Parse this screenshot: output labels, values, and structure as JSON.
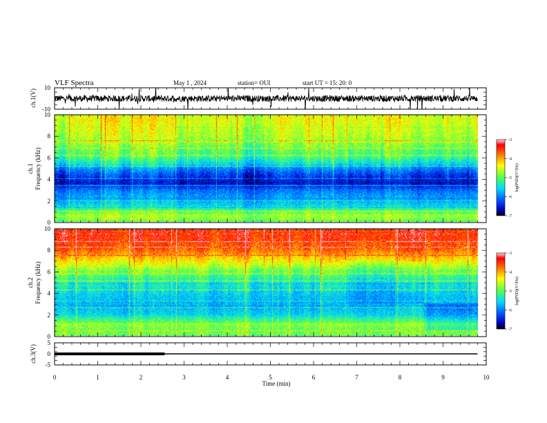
{
  "header": {
    "title": "VLF Spectra",
    "date": "May 1 , 2024",
    "station": "station= OUI",
    "start": "start  UT =   15: 20: 0"
  },
  "colors": {
    "colormap": [
      "#000000",
      "#0000c8",
      "#0064ff",
      "#00dcff",
      "#50ff50",
      "#ffff00",
      "#ff6400",
      "#ff0000"
    ],
    "trace": "#000000"
  },
  "chart_data": [
    {
      "type": "line",
      "panel": "ch1-waveform",
      "ylabel": "ch.1(V)",
      "ylim": [
        -10,
        10
      ],
      "yticks": [
        "10",
        "-10"
      ],
      "series": [
        {
          "values_note": "broadband noise around 0 V",
          "level": 0
        }
      ]
    },
    {
      "type": "heatmap",
      "panel": "ch1-spectrogram",
      "ylabel_line1": "ch.1",
      "ylabel_line2": "Frequency  (kHz)",
      "ylim": [
        0,
        10
      ],
      "yticks": [
        "0",
        "2",
        "4",
        "6",
        "8",
        "10"
      ],
      "colorbar": {
        "label": "log(PSD)(V²/Hz)",
        "range": [
          -7,
          -3
        ],
        "ticks": [
          "-3",
          "-4",
          "-5",
          "-6",
          "-7"
        ]
      },
      "level_profile": [
        {
          "f_khz": 0.0,
          "level": 0.5
        },
        {
          "f_khz": 0.5,
          "level": 0.58
        },
        {
          "f_khz": 1.0,
          "level": 0.48
        },
        {
          "f_khz": 1.5,
          "level": 0.36
        },
        {
          "f_khz": 2.0,
          "level": 0.3
        },
        {
          "f_khz": 2.5,
          "level": 0.27
        },
        {
          "f_khz": 3.0,
          "level": 0.22
        },
        {
          "f_khz": 3.5,
          "level": 0.1
        },
        {
          "f_khz": 4.0,
          "level": 0.12
        },
        {
          "f_khz": 4.5,
          "level": 0.18
        },
        {
          "f_khz": 5.0,
          "level": 0.26
        },
        {
          "f_khz": 5.5,
          "level": 0.38
        },
        {
          "f_khz": 6.0,
          "level": 0.45
        },
        {
          "f_khz": 7.0,
          "level": 0.52
        },
        {
          "f_khz": 8.0,
          "level": 0.58
        },
        {
          "f_khz": 9.0,
          "level": 0.62
        },
        {
          "f_khz": 10.0,
          "level": 0.64
        }
      ]
    },
    {
      "type": "heatmap",
      "panel": "ch2-spectrogram",
      "ylabel_line1": "ch.2",
      "ylabel_line2": "Frequency  (kHz)",
      "ylim": [
        0,
        10
      ],
      "yticks": [
        "0",
        "2",
        "4",
        "6",
        "8",
        "10"
      ],
      "colorbar": {
        "label": "log(PSD)(V²/Hz)",
        "range": [
          -7,
          -3
        ],
        "ticks": [
          "-3",
          "-4",
          "-5",
          "-6",
          "-7"
        ]
      },
      "level_profile": [
        {
          "f_khz": 0.0,
          "level": 0.52
        },
        {
          "f_khz": 0.5,
          "level": 0.52
        },
        {
          "f_khz": 1.0,
          "level": 0.55
        },
        {
          "f_khz": 1.5,
          "level": 0.46
        },
        {
          "f_khz": 2.0,
          "level": 0.36
        },
        {
          "f_khz": 3.0,
          "level": 0.32
        },
        {
          "f_khz": 4.0,
          "level": 0.36
        },
        {
          "f_khz": 5.0,
          "level": 0.42
        },
        {
          "f_khz": 6.0,
          "level": 0.52
        },
        {
          "f_khz": 7.0,
          "level": 0.68
        },
        {
          "f_khz": 8.0,
          "level": 0.82
        },
        {
          "f_khz": 9.0,
          "level": 0.88
        },
        {
          "f_khz": 10.0,
          "level": 0.9
        }
      ]
    },
    {
      "type": "line",
      "panel": "ch3-line",
      "ylabel": "ch.3(V)",
      "ylim": [
        -5,
        5
      ],
      "yticks": [
        "5",
        "0",
        "-5"
      ],
      "series": [
        {
          "segment": "thick",
          "x": [
            0,
            2.55
          ],
          "y": [
            0,
            0
          ]
        },
        {
          "segment": "thin",
          "x": [
            2.55,
            9.8
          ],
          "y": [
            0,
            0
          ]
        }
      ]
    }
  ],
  "xaxis": {
    "label": "Time  (min)",
    "range": [
      0,
      10
    ],
    "ticks": [
      "0",
      "1",
      "2",
      "3",
      "4",
      "5",
      "6",
      "7",
      "8",
      "9",
      "10"
    ]
  }
}
